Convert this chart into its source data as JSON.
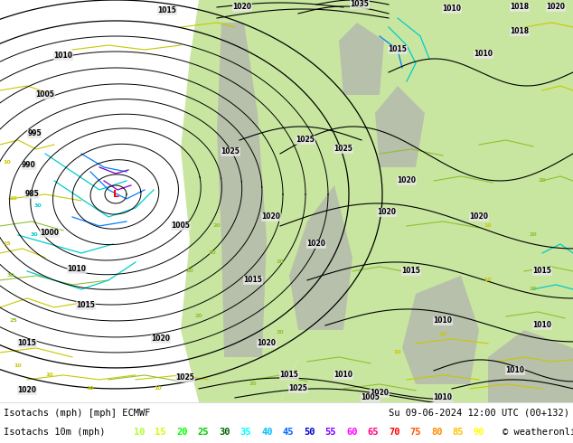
{
  "line1_left": "Isotachs (mph) [mph] ECMWF",
  "line1_right": "Su 09-06-2024 12:00 UTC (00+132)",
  "line2_left": "Isotachs 10m (mph)",
  "copyright": "© weatheronline.co.uk",
  "legend_values": [
    "10",
    "15",
    "20",
    "25",
    "30",
    "35",
    "40",
    "45",
    "50",
    "55",
    "60",
    "65",
    "70",
    "75",
    "80",
    "85",
    "90"
  ],
  "legend_colors": [
    "#adff2f",
    "#c8ff00",
    "#00ff00",
    "#00c800",
    "#006400",
    "#00ffff",
    "#00bfff",
    "#0064ff",
    "#0000cd",
    "#7b00ff",
    "#ff00ff",
    "#ff0080",
    "#ff0000",
    "#ff5500",
    "#ff8c00",
    "#ffc000",
    "#ffff00"
  ],
  "ocean_color": "#e8e8e8",
  "land_color": "#c8e6a0",
  "mountain_color": "#b0b0b0",
  "bg_color": "#ffffff",
  "figsize": [
    6.34,
    4.9
  ],
  "dpi": 100
}
